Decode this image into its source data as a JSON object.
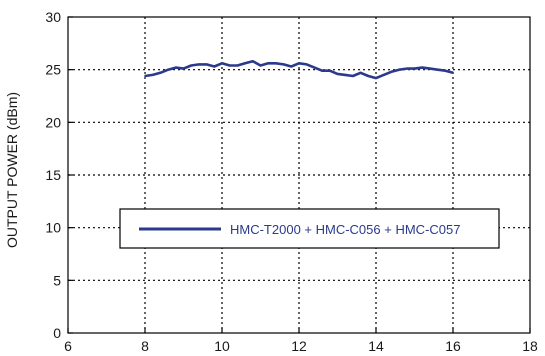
{
  "chart_data": {
    "type": "line",
    "title": "",
    "xlabel": "",
    "ylabel": "OUTPUT POWER (dBm)",
    "xlim": [
      6,
      18
    ],
    "ylim": [
      0,
      30
    ],
    "x_ticks": [
      "6",
      "8",
      "10",
      "12",
      "14",
      "16",
      "18"
    ],
    "y_ticks": [
      "0",
      "5",
      "10",
      "15",
      "20",
      "25",
      "30"
    ],
    "grid": true,
    "legend_position": "center",
    "series": [
      {
        "name": "HMC-T2000 + HMC-C056 + HMC-C057",
        "color": "#2b3a8c",
        "x": [
          8.0,
          8.2,
          8.4,
          8.6,
          8.8,
          9.0,
          9.2,
          9.4,
          9.6,
          9.8,
          10.0,
          10.2,
          10.4,
          10.6,
          10.8,
          11.0,
          11.2,
          11.4,
          11.6,
          11.8,
          12.0,
          12.2,
          12.4,
          12.6,
          12.8,
          13.0,
          13.2,
          13.4,
          13.6,
          13.8,
          14.0,
          14.2,
          14.4,
          14.6,
          14.8,
          15.0,
          15.2,
          15.4,
          15.6,
          15.8,
          16.0
        ],
        "y": [
          24.4,
          24.5,
          24.7,
          25.0,
          25.2,
          25.1,
          25.4,
          25.5,
          25.5,
          25.3,
          25.6,
          25.4,
          25.4,
          25.6,
          25.8,
          25.4,
          25.6,
          25.6,
          25.5,
          25.3,
          25.6,
          25.5,
          25.2,
          24.9,
          24.9,
          24.6,
          24.5,
          24.4,
          24.7,
          24.4,
          24.2,
          24.5,
          24.8,
          25.0,
          25.1,
          25.1,
          25.2,
          25.1,
          25.0,
          24.9,
          24.7
        ]
      }
    ]
  }
}
